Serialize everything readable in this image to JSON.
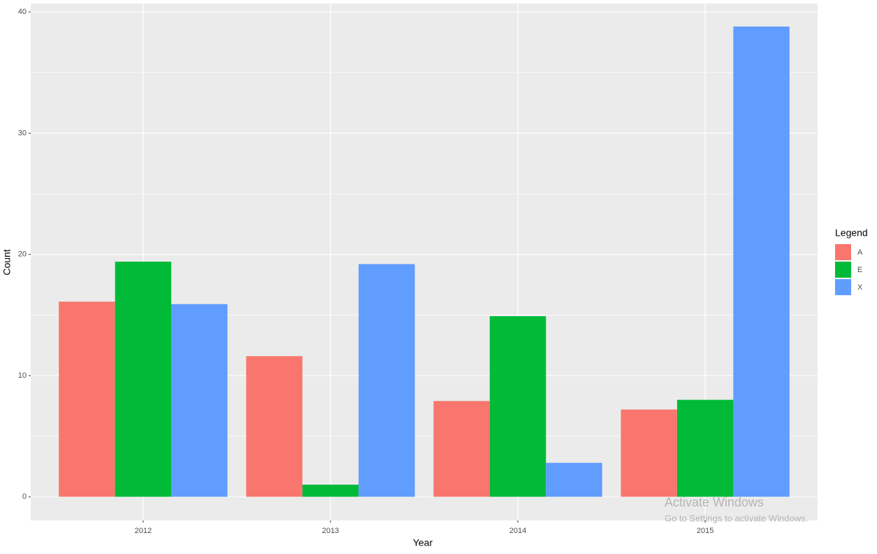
{
  "chart_data": {
    "type": "bar",
    "x_label": "Year",
    "y_label": "Count",
    "categories": [
      "2012",
      "2013",
      "2014",
      "2015"
    ],
    "series": [
      {
        "name": "A",
        "color": "#F8766D",
        "values": [
          16.1,
          11.6,
          7.9,
          7.2
        ]
      },
      {
        "name": "E",
        "color": "#00BA38",
        "values": [
          19.4,
          1.0,
          14.9,
          8.0
        ]
      },
      {
        "name": "X",
        "color": "#619CFF",
        "values": [
          15.9,
          19.2,
          2.8,
          38.8
        ]
      }
    ],
    "legend_title": "Legend",
    "legend": "right",
    "ylim": [
      -1.95,
      40.7
    ],
    "yticks": [
      0,
      10,
      20,
      30,
      40
    ],
    "grid": true
  },
  "watermark": {
    "title": "Activate Windows",
    "subtitle": "Go to Settings to activate Windows."
  }
}
